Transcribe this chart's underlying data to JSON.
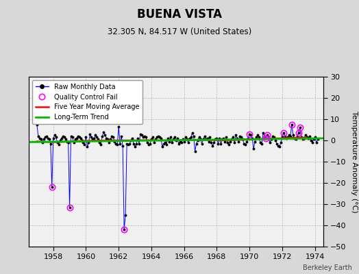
{
  "title": "BUENA VISTA",
  "subtitle": "32.305 N, 84.517 W (United States)",
  "ylabel": "Temperature Anomaly (°C)",
  "watermark": "Berkeley Earth",
  "bg_color": "#d8d8d8",
  "plot_bg_color": "#f0f0f0",
  "xlim": [
    1956.5,
    1974.5
  ],
  "ylim": [
    -50,
    30
  ],
  "yticks": [
    -50,
    -40,
    -30,
    -20,
    -10,
    0,
    10,
    20,
    30
  ],
  "xticks": [
    1958,
    1960,
    1962,
    1964,
    1966,
    1968,
    1970,
    1972,
    1974
  ],
  "raw_color": "#0000ff",
  "dot_color": "#000000",
  "qc_color": "#ff00ff",
  "ma_color": "#ff0000",
  "trend_color": "#00bb00",
  "raw_monthly": [
    [
      1957.0,
      7.5
    ],
    [
      1957.083,
      2.0
    ],
    [
      1957.167,
      1.0
    ],
    [
      1957.25,
      0.5
    ],
    [
      1957.333,
      -1.0
    ],
    [
      1957.417,
      0.5
    ],
    [
      1957.5,
      1.5
    ],
    [
      1957.583,
      2.0
    ],
    [
      1957.667,
      1.0
    ],
    [
      1957.75,
      0.5
    ],
    [
      1957.833,
      -1.5
    ],
    [
      1957.917,
      -22.0
    ],
    [
      1958.0,
      1.0
    ],
    [
      1958.083,
      2.5
    ],
    [
      1958.167,
      1.5
    ],
    [
      1958.25,
      -1.0
    ],
    [
      1958.333,
      -2.0
    ],
    [
      1958.417,
      0.0
    ],
    [
      1958.5,
      1.0
    ],
    [
      1958.583,
      2.0
    ],
    [
      1958.667,
      1.5
    ],
    [
      1958.75,
      0.5
    ],
    [
      1958.833,
      -0.5
    ],
    [
      1958.917,
      -1.0
    ],
    [
      1959.0,
      -31.5
    ],
    [
      1959.083,
      2.0
    ],
    [
      1959.167,
      1.5
    ],
    [
      1959.25,
      -1.0
    ],
    [
      1959.333,
      0.5
    ],
    [
      1959.417,
      1.0
    ],
    [
      1959.5,
      2.0
    ],
    [
      1959.583,
      1.5
    ],
    [
      1959.667,
      1.0
    ],
    [
      1959.75,
      0.0
    ],
    [
      1959.833,
      -1.0
    ],
    [
      1959.917,
      -2.0
    ],
    [
      1960.0,
      1.5
    ],
    [
      1960.083,
      -3.0
    ],
    [
      1960.167,
      -1.0
    ],
    [
      1960.25,
      3.0
    ],
    [
      1960.333,
      1.5
    ],
    [
      1960.417,
      0.5
    ],
    [
      1960.5,
      1.0
    ],
    [
      1960.583,
      2.5
    ],
    [
      1960.667,
      1.5
    ],
    [
      1960.75,
      0.5
    ],
    [
      1960.833,
      -1.0
    ],
    [
      1960.917,
      -2.0
    ],
    [
      1961.0,
      2.0
    ],
    [
      1961.083,
      4.0
    ],
    [
      1961.167,
      2.5
    ],
    [
      1961.25,
      1.0
    ],
    [
      1961.333,
      0.5
    ],
    [
      1961.417,
      -1.0
    ],
    [
      1961.5,
      0.5
    ],
    [
      1961.583,
      2.0
    ],
    [
      1961.667,
      1.5
    ],
    [
      1961.75,
      -0.5
    ],
    [
      1961.833,
      -1.5
    ],
    [
      1961.917,
      -2.0
    ],
    [
      1962.0,
      6.5
    ],
    [
      1962.083,
      -1.5
    ],
    [
      1962.167,
      2.0
    ],
    [
      1962.25,
      -2.5
    ],
    [
      1962.333,
      -42.0
    ],
    [
      1962.417,
      -35.0
    ],
    [
      1962.5,
      -1.5
    ],
    [
      1962.583,
      -2.0
    ],
    [
      1962.667,
      -1.5
    ],
    [
      1962.75,
      0.0
    ],
    [
      1962.833,
      1.0
    ],
    [
      1962.917,
      -1.5
    ],
    [
      1963.0,
      -3.0
    ],
    [
      1963.083,
      -1.5
    ],
    [
      1963.167,
      1.0
    ],
    [
      1963.25,
      -1.5
    ],
    [
      1963.333,
      3.0
    ],
    [
      1963.417,
      2.5
    ],
    [
      1963.5,
      1.5
    ],
    [
      1963.583,
      2.0
    ],
    [
      1963.667,
      1.5
    ],
    [
      1963.75,
      -1.0
    ],
    [
      1963.833,
      -2.0
    ],
    [
      1963.917,
      -1.5
    ],
    [
      1964.0,
      0.5
    ],
    [
      1964.083,
      1.5
    ],
    [
      1964.167,
      -1.0
    ],
    [
      1964.25,
      0.5
    ],
    [
      1964.333,
      1.5
    ],
    [
      1964.417,
      2.0
    ],
    [
      1964.5,
      1.5
    ],
    [
      1964.583,
      1.0
    ],
    [
      1964.667,
      -3.0
    ],
    [
      1964.75,
      -1.5
    ],
    [
      1964.833,
      -1.0
    ],
    [
      1964.917,
      -2.0
    ],
    [
      1965.0,
      1.0
    ],
    [
      1965.083,
      -0.5
    ],
    [
      1965.167,
      1.5
    ],
    [
      1965.25,
      -1.0
    ],
    [
      1965.333,
      0.5
    ],
    [
      1965.417,
      1.5
    ],
    [
      1965.5,
      0.0
    ],
    [
      1965.583,
      1.0
    ],
    [
      1965.667,
      -1.5
    ],
    [
      1965.75,
      -0.5
    ],
    [
      1965.833,
      -1.0
    ],
    [
      1965.917,
      0.5
    ],
    [
      1966.0,
      -0.5
    ],
    [
      1966.083,
      1.5
    ],
    [
      1966.167,
      0.5
    ],
    [
      1966.25,
      -1.0
    ],
    [
      1966.333,
      1.0
    ],
    [
      1966.417,
      1.5
    ],
    [
      1966.5,
      3.5
    ],
    [
      1966.583,
      2.0
    ],
    [
      1966.667,
      -5.0
    ],
    [
      1966.75,
      -1.5
    ],
    [
      1966.833,
      0.0
    ],
    [
      1966.917,
      1.5
    ],
    [
      1967.0,
      0.5
    ],
    [
      1967.083,
      -1.5
    ],
    [
      1967.167,
      0.5
    ],
    [
      1967.25,
      2.0
    ],
    [
      1967.333,
      0.5
    ],
    [
      1967.417,
      1.0
    ],
    [
      1967.5,
      -0.5
    ],
    [
      1967.583,
      1.5
    ],
    [
      1967.667,
      -1.0
    ],
    [
      1967.75,
      -2.5
    ],
    [
      1967.833,
      -1.0
    ],
    [
      1967.917,
      0.5
    ],
    [
      1968.0,
      1.0
    ],
    [
      1968.083,
      -1.5
    ],
    [
      1968.167,
      1.0
    ],
    [
      1968.25,
      -1.5
    ],
    [
      1968.333,
      0.5
    ],
    [
      1968.417,
      1.0
    ],
    [
      1968.5,
      -0.5
    ],
    [
      1968.583,
      1.5
    ],
    [
      1968.667,
      -1.0
    ],
    [
      1968.75,
      -2.0
    ],
    [
      1968.833,
      -0.5
    ],
    [
      1968.917,
      0.5
    ],
    [
      1969.0,
      1.5
    ],
    [
      1969.083,
      -1.0
    ],
    [
      1969.167,
      2.5
    ],
    [
      1969.25,
      1.0
    ],
    [
      1969.333,
      -0.5
    ],
    [
      1969.417,
      2.0
    ],
    [
      1969.5,
      1.5
    ],
    [
      1969.583,
      0.5
    ],
    [
      1969.667,
      -1.5
    ],
    [
      1969.75,
      -2.0
    ],
    [
      1969.833,
      -0.5
    ],
    [
      1969.917,
      1.0
    ],
    [
      1970.0,
      3.0
    ],
    [
      1970.083,
      2.5
    ],
    [
      1970.167,
      1.0
    ],
    [
      1970.25,
      -4.0
    ],
    [
      1970.333,
      -0.5
    ],
    [
      1970.417,
      1.5
    ],
    [
      1970.5,
      2.5
    ],
    [
      1970.583,
      1.5
    ],
    [
      1970.667,
      -1.0
    ],
    [
      1970.75,
      -1.5
    ],
    [
      1970.833,
      3.5
    ],
    [
      1970.917,
      2.0
    ],
    [
      1971.0,
      1.0
    ],
    [
      1971.083,
      2.5
    ],
    [
      1971.167,
      1.5
    ],
    [
      1971.25,
      -1.0
    ],
    [
      1971.333,
      0.5
    ],
    [
      1971.417,
      2.0
    ],
    [
      1971.5,
      1.5
    ],
    [
      1971.583,
      0.0
    ],
    [
      1971.667,
      -1.5
    ],
    [
      1971.75,
      -2.5
    ],
    [
      1971.833,
      -3.0
    ],
    [
      1971.917,
      -1.0
    ],
    [
      1972.0,
      2.0
    ],
    [
      1972.083,
      3.5
    ],
    [
      1972.167,
      2.0
    ],
    [
      1972.25,
      1.0
    ],
    [
      1972.333,
      1.5
    ],
    [
      1972.417,
      2.5
    ],
    [
      1972.5,
      2.0
    ],
    [
      1972.583,
      7.5
    ],
    [
      1972.667,
      2.5
    ],
    [
      1972.75,
      1.0
    ],
    [
      1972.833,
      0.5
    ],
    [
      1972.917,
      2.0
    ],
    [
      1973.0,
      3.5
    ],
    [
      1973.083,
      6.0
    ],
    [
      1973.167,
      1.5
    ],
    [
      1973.25,
      0.5
    ],
    [
      1973.333,
      1.0
    ],
    [
      1973.417,
      2.5
    ],
    [
      1973.5,
      1.5
    ],
    [
      1973.583,
      1.0
    ],
    [
      1973.667,
      2.0
    ],
    [
      1973.75,
      0.0
    ],
    [
      1973.833,
      -1.0
    ],
    [
      1973.917,
      0.5
    ],
    [
      1974.0,
      1.5
    ],
    [
      1974.083,
      -1.0
    ],
    [
      1974.167,
      0.5
    ]
  ],
  "qc_fails": [
    [
      1957.917,
      -22.0
    ],
    [
      1959.0,
      -31.5
    ],
    [
      1962.333,
      -42.0
    ],
    [
      1970.0,
      3.0
    ],
    [
      1971.0,
      1.0
    ],
    [
      1971.083,
      2.5
    ],
    [
      1972.083,
      3.5
    ],
    [
      1972.583,
      7.5
    ],
    [
      1973.083,
      6.0
    ],
    [
      1973.0,
      3.5
    ]
  ],
  "moving_avg": [
    [
      1957.0,
      -0.5
    ],
    [
      1957.5,
      -0.7
    ],
    [
      1958.0,
      -0.8
    ],
    [
      1958.5,
      -0.7
    ],
    [
      1959.0,
      -0.5
    ],
    [
      1959.5,
      -0.3
    ],
    [
      1960.0,
      -0.2
    ],
    [
      1960.5,
      -0.1
    ],
    [
      1961.0,
      -0.1
    ],
    [
      1961.5,
      -0.0
    ],
    [
      1962.0,
      0.0
    ],
    [
      1962.5,
      0.0
    ],
    [
      1963.0,
      0.0
    ],
    [
      1963.5,
      0.1
    ],
    [
      1964.0,
      0.1
    ],
    [
      1964.5,
      0.0
    ],
    [
      1965.0,
      0.0
    ],
    [
      1965.5,
      0.1
    ],
    [
      1966.0,
      0.2
    ],
    [
      1966.5,
      0.3
    ],
    [
      1967.0,
      0.3
    ],
    [
      1967.5,
      0.2
    ],
    [
      1968.0,
      0.1
    ],
    [
      1968.5,
      0.1
    ],
    [
      1969.0,
      0.2
    ],
    [
      1969.5,
      0.3
    ],
    [
      1970.0,
      0.4
    ],
    [
      1970.5,
      0.6
    ],
    [
      1971.0,
      0.7
    ],
    [
      1971.5,
      0.9
    ],
    [
      1972.0,
      1.0
    ],
    [
      1972.5,
      1.2
    ],
    [
      1973.0,
      1.3
    ],
    [
      1973.5,
      1.3
    ]
  ],
  "trend_line": [
    [
      1956.5,
      -0.8
    ],
    [
      1974.5,
      1.0
    ]
  ]
}
